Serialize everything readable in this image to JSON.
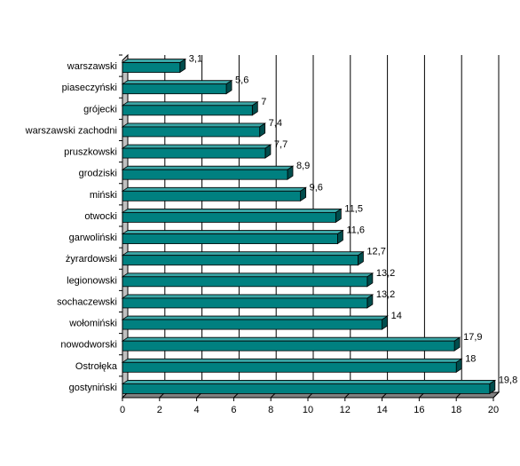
{
  "chart_data": {
    "type": "bar",
    "orientation": "horizontal",
    "categories": [
      "warszawski",
      "piaseczyński",
      "grójecki",
      "warszawski zachodni",
      "pruszkowski",
      "grodziski",
      "miński",
      "otwocki",
      "garwoliński",
      "żyrardowski",
      "legionowski",
      "sochaczewski",
      "wołomiński",
      "nowodworski",
      "Ostrołęka",
      "gostyniński"
    ],
    "values": [
      3.1,
      5.6,
      7,
      7.4,
      7.7,
      8.9,
      9.6,
      11.5,
      11.6,
      12.7,
      13.2,
      13.2,
      14,
      17.9,
      18,
      19.8
    ],
    "value_labels": [
      "3,1",
      "5,6",
      "7",
      "7,4",
      "7,7",
      "8,9",
      "9,6",
      "11,5",
      "11,6",
      "12,7",
      "13,2",
      "13,2",
      "14",
      "17,9",
      "18",
      "19,8"
    ],
    "xlim": [
      0,
      20
    ],
    "xticks": [
      0,
      2,
      4,
      6,
      8,
      10,
      12,
      14,
      16,
      18,
      20
    ],
    "grid": true,
    "legend": "none",
    "colors": {
      "bar": "#008080",
      "bar_top": "#3aa6a6",
      "bar_side": "#004d4d",
      "floor": "#808080",
      "wall": "#c0c0c0",
      "gridline": "#000000"
    }
  }
}
